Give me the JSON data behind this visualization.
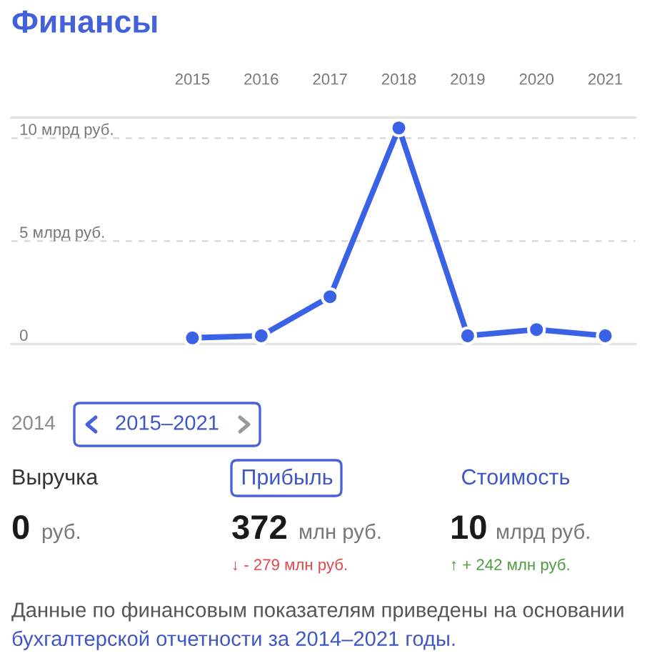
{
  "chart_data": [
    {
      "type": "line",
      "title": "Финансы",
      "categories": [
        "2015",
        "2016",
        "2017",
        "2018",
        "2019",
        "2020",
        "2021"
      ],
      "series": [
        {
          "color": "#3a62e6",
          "values": [
            0.3,
            0.4,
            2.3,
            10.5,
            0.4,
            0.7,
            0.4
          ]
        }
      ],
      "ylim": [
        0,
        11
      ],
      "yticks": [
        0,
        {
          "value": 5,
          "label": "5 млрд руб."
        },
        {
          "value": 10,
          "label": "10 млрд руб."
        }
      ],
      "grid": "y",
      "marker": "circle",
      "line_style": "solid"
    },
    {
      "type": "other",
      "annotations": [
        "2014",
        "2015–2021",
        "Выручка",
        "Прибыль",
        "Стоимость",
        "0",
        "руб.",
        "372",
        "млн руб.",
        "10",
        "млрд руб.",
        "↓ - 279 млн руб.",
        "↑ + 242 млн руб.",
        "Данные по финансовым показателям приведены на основании",
        "бухгалтерской отчетности за 2014–2021 годы."
      ]
    }
  ]
}
